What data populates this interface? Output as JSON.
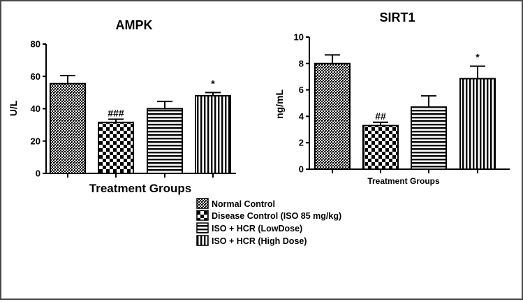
{
  "chart_data": [
    {
      "type": "bar",
      "title": "AMPK",
      "ylabel": "U/L",
      "xlabel": "Treatment Groups",
      "ylim": [
        0,
        80
      ],
      "yticks": [
        0,
        20,
        40,
        60,
        80
      ],
      "categories": [
        "Normal Control",
        "Disease Control (ISO 85 mg/kg)",
        "ISO + HCR (LowDose)",
        "ISO + HCR (High Dose)"
      ],
      "values": [
        55.5,
        31.5,
        40,
        48
      ],
      "errors": [
        5,
        2,
        4.5,
        2
      ],
      "annotations": [
        "",
        "###",
        "",
        "*"
      ]
    },
    {
      "type": "bar",
      "title": "SIRT1",
      "ylabel": "ng/mL",
      "xlabel": "Treatment Groups",
      "ylim": [
        0,
        10
      ],
      "yticks": [
        0,
        2,
        4,
        6,
        8,
        10
      ],
      "categories": [
        "Normal Control",
        "Disease Control (ISO 85 mg/kg)",
        "ISO + HCR (LowDose)",
        "ISO + HCR (High Dose)"
      ],
      "values": [
        8,
        3.3,
        4.7,
        6.85
      ],
      "errors": [
        0.65,
        0.25,
        0.85,
        0.95
      ],
      "annotations": [
        "",
        "##",
        "",
        "*"
      ]
    }
  ],
  "legend": {
    "items": [
      "Normal Control",
      "Disease Control (ISO 85 mg/kg)",
      "ISO + HCR (LowDose)",
      "ISO + HCR (High Dose)"
    ],
    "patterns": [
      "dense-crosshatch",
      "checkerboard",
      "horizontal-lines",
      "vertical-lines"
    ]
  },
  "colors": {
    "fill": "#000000",
    "background": "#ffffff",
    "frame": "#4a4a4a"
  }
}
